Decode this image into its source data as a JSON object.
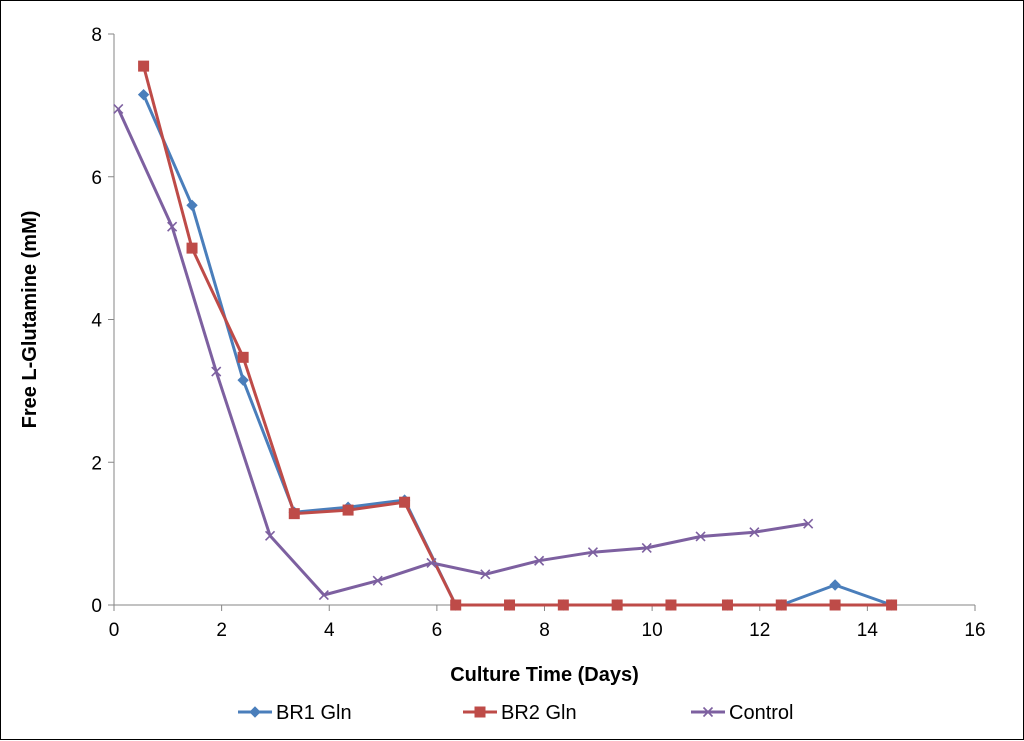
{
  "chart_data": {
    "type": "line",
    "title": "",
    "xlabel": "Culture Time (Days)",
    "ylabel": "Free L-Glutamine (mM)",
    "xlim": [
      0,
      16
    ],
    "ylim": [
      0,
      8
    ],
    "xticks": [
      0,
      2,
      4,
      6,
      8,
      10,
      12,
      14,
      16
    ],
    "yticks": [
      0,
      2,
      4,
      6,
      8
    ],
    "grid": false,
    "legend_position": "bottom",
    "series": [
      {
        "name": "BR1 Gln",
        "color": "#4a7ebb",
        "marker": "diamond",
        "points": [
          [
            0.55,
            7.15
          ],
          [
            1.45,
            5.6
          ],
          [
            2.4,
            3.15
          ],
          [
            3.35,
            1.3
          ],
          [
            4.35,
            1.37
          ],
          [
            5.4,
            1.47
          ],
          [
            6.35,
            0
          ],
          [
            7.35,
            0
          ],
          [
            8.35,
            0
          ],
          [
            9.35,
            0
          ],
          [
            10.35,
            0
          ],
          [
            11.4,
            0
          ],
          [
            12.4,
            0
          ],
          [
            13.4,
            0.28
          ],
          [
            14.45,
            0
          ]
        ]
      },
      {
        "name": "BR2 Gln",
        "color": "#be4b48",
        "marker": "square",
        "points": [
          [
            0.55,
            7.55
          ],
          [
            1.45,
            5.0
          ],
          [
            2.4,
            3.47
          ],
          [
            3.35,
            1.28
          ],
          [
            4.35,
            1.33
          ],
          [
            5.4,
            1.44
          ],
          [
            6.35,
            0
          ],
          [
            7.35,
            0
          ],
          [
            8.35,
            0
          ],
          [
            9.35,
            0
          ],
          [
            10.35,
            0
          ],
          [
            11.4,
            0
          ],
          [
            12.4,
            0
          ],
          [
            13.4,
            0
          ],
          [
            14.45,
            0
          ]
        ]
      },
      {
        "name": "Control",
        "color": "#7d60a0",
        "marker": "x",
        "points": [
          [
            0.08,
            6.95
          ],
          [
            1.08,
            5.3
          ],
          [
            1.9,
            3.27
          ],
          [
            2.9,
            0.97
          ],
          [
            3.9,
            0.14
          ],
          [
            4.9,
            0.34
          ],
          [
            5.9,
            0.59
          ],
          [
            6.9,
            0.43
          ],
          [
            7.9,
            0.62
          ],
          [
            8.9,
            0.74
          ],
          [
            9.9,
            0.8
          ],
          [
            10.9,
            0.96
          ],
          [
            11.9,
            1.02
          ],
          [
            12.9,
            1.14
          ]
        ]
      }
    ]
  }
}
